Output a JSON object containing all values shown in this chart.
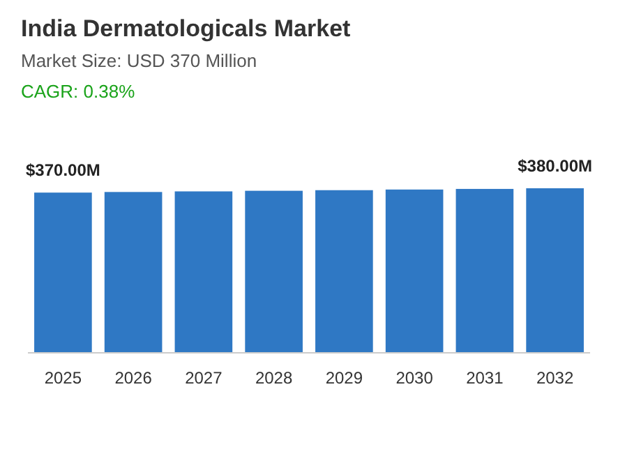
{
  "chart_data": {
    "type": "bar",
    "title": "India Dermatologicals Market",
    "subtitle": "Market Size: USD 370 Million",
    "annotations": [
      "CAGR: 0.38%"
    ],
    "categories": [
      "2025",
      "2026",
      "2027",
      "2028",
      "2029",
      "2030",
      "2031",
      "2032"
    ],
    "values": [
      370,
      371.4,
      372.8,
      374.2,
      375.6,
      377.1,
      378.5,
      380
    ],
    "value_labels": [
      "$370.00M",
      null,
      null,
      null,
      null,
      null,
      null,
      "$380.00M"
    ],
    "color": "#2f78c4"
  }
}
